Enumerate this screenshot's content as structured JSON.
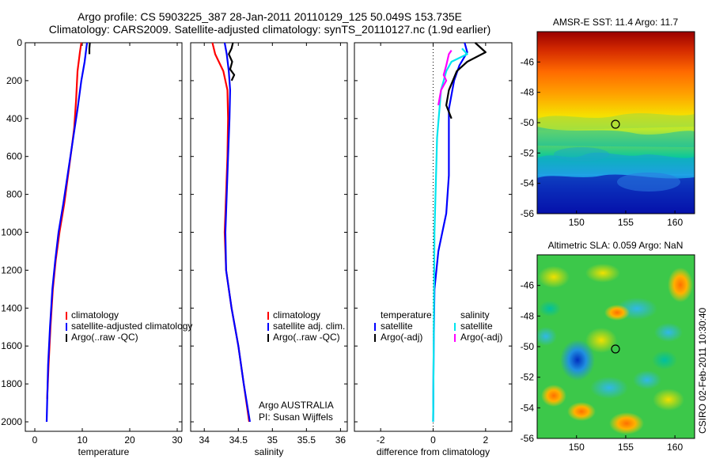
{
  "header": {
    "title_line1": "Argo profile: CS 5903225_387 28-Jan-2011 20110129_125 50.049S 153.735E",
    "title_line2": "Climatology: CARS2009. Satellite-adjusted climatology: synTS_20110127.nc (1.9d earlier)"
  },
  "footer": {
    "argo_label": "Argo AUSTRALIA",
    "pi_label": "PI: Susan Wijffels",
    "side_stamp": "CSIRO 02-Feb-2011 10:30:40"
  },
  "colors": {
    "climatology": "#ff0000",
    "satellite": "#0000ff",
    "argo": "#000000",
    "salinity_satellite": "#00e5ee",
    "salinity_argo": "#ff00ff"
  },
  "chart_data": [
    {
      "id": "temperature",
      "type": "line",
      "xlabel": "temperature",
      "ylabel": "",
      "xlim": [
        -2,
        31
      ],
      "ylim": [
        2050,
        0
      ],
      "xticks": [
        "0",
        "10",
        "20",
        "30"
      ],
      "xtick_values": [
        0,
        10,
        20,
        30
      ],
      "yticks": [
        "0",
        "200",
        "400",
        "600",
        "800",
        "1000",
        "1200",
        "1400",
        "1600",
        "1800",
        "2000"
      ],
      "ytick_values": [
        0,
        200,
        400,
        600,
        800,
        1000,
        1200,
        1400,
        1600,
        1800,
        2000
      ],
      "legend": [
        "climatology",
        "satellite-adjusted climatology",
        "Argo(..raw -QC)"
      ],
      "series": [
        {
          "name": "climatology",
          "color": "#ff0000",
          "points": [
            [
              9.8,
              0
            ],
            [
              9.5,
              50
            ],
            [
              9.0,
              150
            ],
            [
              8.7,
              300
            ],
            [
              8.3,
              450
            ],
            [
              7.8,
              550
            ],
            [
              7.0,
              700
            ],
            [
              6.2,
              850
            ],
            [
              5.2,
              1000
            ],
            [
              4.4,
              1150
            ],
            [
              3.8,
              1300
            ],
            [
              3.3,
              1500
            ],
            [
              2.9,
              1700
            ],
            [
              2.6,
              1880
            ]
          ]
        },
        {
          "name": "satellite-adjusted climatology",
          "color": "#0000ff",
          "points": [
            [
              11.0,
              0
            ],
            [
              10.8,
              40
            ],
            [
              10.5,
              100
            ],
            [
              9.8,
              200
            ],
            [
              9.0,
              350
            ],
            [
              8.4,
              450
            ],
            [
              7.8,
              550
            ],
            [
              6.9,
              700
            ],
            [
              6.0,
              850
            ],
            [
              5.0,
              1000
            ],
            [
              4.3,
              1150
            ],
            [
              3.7,
              1300
            ],
            [
              3.2,
              1500
            ],
            [
              2.8,
              1700
            ],
            [
              2.5,
              2000
            ]
          ]
        },
        {
          "name": "Argo(..raw -QC)",
          "color": "#000000",
          "points": [
            [
              11.6,
              0
            ],
            [
              11.5,
              30
            ],
            [
              11.5,
              60
            ]
          ]
        }
      ]
    },
    {
      "id": "salinity",
      "type": "line",
      "xlabel": "salinity",
      "ylabel": "",
      "xlim": [
        33.8,
        36.1
      ],
      "ylim": [
        2050,
        0
      ],
      "xticks": [
        "34",
        "34.5",
        "35",
        "35.5",
        "36"
      ],
      "xtick_values": [
        34,
        34.5,
        35,
        35.5,
        36
      ],
      "legend": [
        "climatology",
        "satellite adj. clim.",
        "Argo(..raw -QC)"
      ],
      "series": [
        {
          "name": "climatology",
          "color": "#ff0000",
          "points": [
            [
              34.12,
              0
            ],
            [
              34.16,
              60
            ],
            [
              34.28,
              150
            ],
            [
              34.34,
              250
            ],
            [
              34.35,
              400
            ],
            [
              34.34,
              600
            ],
            [
              34.32,
              800
            ],
            [
              34.3,
              1000
            ],
            [
              34.32,
              1200
            ],
            [
              34.4,
              1400
            ],
            [
              34.5,
              1600
            ],
            [
              34.58,
              1800
            ],
            [
              34.66,
              2000
            ]
          ]
        },
        {
          "name": "satellite adj. clim.",
          "color": "#0000ff",
          "points": [
            [
              34.3,
              0
            ],
            [
              34.33,
              60
            ],
            [
              34.36,
              150
            ],
            [
              34.38,
              250
            ],
            [
              34.37,
              400
            ],
            [
              34.35,
              600
            ],
            [
              34.33,
              800
            ],
            [
              34.31,
              1000
            ],
            [
              34.32,
              1200
            ],
            [
              34.4,
              1400
            ],
            [
              34.5,
              1600
            ],
            [
              34.58,
              1800
            ],
            [
              34.67,
              2000
            ]
          ]
        },
        {
          "name": "Argo(..raw -QC)",
          "color": "#000000",
          "points": [
            [
              34.42,
              0
            ],
            [
              34.4,
              30
            ],
            [
              34.36,
              60
            ],
            [
              34.41,
              100
            ],
            [
              34.38,
              140
            ],
            [
              34.44,
              170
            ],
            [
              34.4,
              200
            ]
          ]
        }
      ]
    },
    {
      "id": "difference",
      "type": "line",
      "xlabel": "difference from climatology",
      "ylabel": "",
      "xlim": [
        -3,
        3
      ],
      "ylim": [
        2050,
        0
      ],
      "xticks": [
        "-2",
        "0",
        "2"
      ],
      "xtick_values": [
        -2,
        0,
        2
      ],
      "legend_left_title": "temperature",
      "legend_left": [
        "satellite",
        "Argo(-adj)"
      ],
      "legend_right_title": "salinity",
      "legend_right": [
        "satellite",
        "Argo(-adj)"
      ],
      "series": [
        {
          "name": "temperature satellite",
          "color": "#0000ff",
          "points": [
            [
              1.2,
              0
            ],
            [
              1.3,
              50
            ],
            [
              1.0,
              120
            ],
            [
              0.8,
              200
            ],
            [
              0.6,
              350
            ],
            [
              0.6,
              500
            ],
            [
              0.6,
              700
            ],
            [
              0.5,
              900
            ],
            [
              0.2,
              1100
            ],
            [
              0.05,
              1300
            ],
            [
              0.02,
              1600
            ],
            [
              0.0,
              2000
            ]
          ]
        },
        {
          "name": "temperature Argo(-adj)",
          "color": "#000000",
          "points": [
            [
              1.6,
              0
            ],
            [
              2.0,
              50
            ],
            [
              1.3,
              100
            ],
            [
              0.9,
              150
            ],
            [
              0.6,
              250
            ],
            [
              0.5,
              330
            ],
            [
              0.7,
              400
            ]
          ]
        },
        {
          "name": "salinity satellite",
          "color": "#00e5ee",
          "points": [
            [
              1.1,
              30
            ],
            [
              1.3,
              60
            ],
            [
              0.7,
              100
            ],
            [
              0.5,
              150
            ],
            [
              0.3,
              250
            ],
            [
              0.15,
              500
            ],
            [
              0.05,
              1000
            ],
            [
              0.0,
              2000
            ]
          ]
        },
        {
          "name": "salinity Argo(-adj)",
          "color": "#ff00ff",
          "points": [
            [
              0.7,
              40
            ],
            [
              0.6,
              60
            ],
            [
              0.5,
              120
            ],
            [
              0.4,
              170
            ],
            [
              0.5,
              200
            ],
            [
              0.3,
              250
            ],
            [
              0.2,
              330
            ]
          ]
        }
      ]
    },
    {
      "id": "sst_map",
      "type": "heatmap",
      "title": "AMSR-E SST: 11.4 Argo: 11.7",
      "xlim": [
        146,
        162
      ],
      "ylim": [
        -56,
        -44
      ],
      "xticks": [
        "150",
        "155",
        "160"
      ],
      "xtick_values": [
        150,
        155,
        160
      ],
      "yticks": [
        "-46",
        "-48",
        "-50",
        "-52",
        "-54",
        "-56"
      ],
      "ytick_values": [
        -46,
        -48,
        -50,
        -52,
        -54,
        -56
      ],
      "marker": {
        "lon": 153.7,
        "lat": -50.05
      }
    },
    {
      "id": "sla_map",
      "type": "heatmap",
      "title": "Altimetric SLA: 0.059 Argo: NaN",
      "xlim": [
        146,
        162
      ],
      "ylim": [
        -56,
        -44
      ],
      "xticks": [
        "150",
        "155",
        "160"
      ],
      "xtick_values": [
        150,
        155,
        160
      ],
      "yticks": [
        "-46",
        "-48",
        "-50",
        "-52",
        "-54",
        "-56"
      ],
      "ytick_values": [
        -46,
        -48,
        -50,
        -52,
        -54,
        -56
      ],
      "marker": {
        "lon": 153.7,
        "lat": -50.05
      }
    }
  ]
}
